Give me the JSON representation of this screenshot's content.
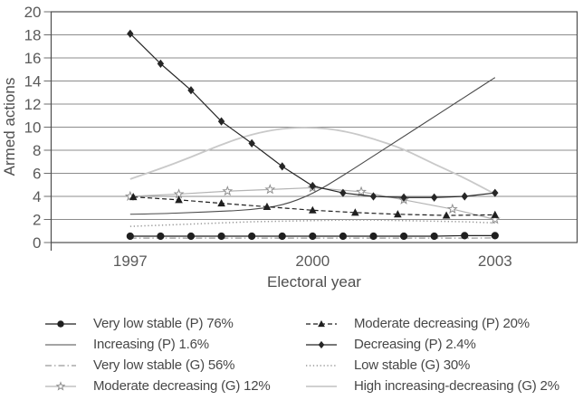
{
  "chart_data": {
    "type": "line",
    "title": "",
    "ylabel": "Armed actions",
    "xlabel": "Electoral year",
    "ylim": [
      0,
      20
    ],
    "xlim": [
      1995.7,
      2004.35
    ],
    "yticks": [
      0,
      2,
      4,
      6,
      8,
      10,
      12,
      14,
      16,
      18,
      20
    ],
    "xticks": [
      1997,
      2000,
      2003
    ],
    "grid": "horizontal",
    "legend_position": "bottom, two columns",
    "colors": {
      "dark_line": "#1f1f1f",
      "mid_gray": "#999999",
      "light_gray": "#c9c9c9",
      "grid": "#8c8c8c",
      "border": "#4d4d4d",
      "text": "#4f4f4f"
    },
    "series": [
      {
        "key": "very-low-stable-p",
        "label": "Very low stable (P) 76%",
        "color": "#1f1f1f",
        "line": "solid",
        "width": 1.2,
        "marker": "circle",
        "smooth": false,
        "x": [
          1997,
          1997.5,
          1998,
          1998.5,
          1999,
          1999.5,
          2000,
          2000.5,
          2001,
          2001.5,
          2002,
          2002.5,
          2003
        ],
        "y": [
          0.55,
          0.55,
          0.55,
          0.55,
          0.55,
          0.55,
          0.55,
          0.55,
          0.55,
          0.55,
          0.55,
          0.6,
          0.6
        ]
      },
      {
        "key": "moderate-decreasing-p",
        "label": "Moderate decreasing (P) 20%",
        "color": "#1f1f1f",
        "line": "dashed",
        "width": 1.2,
        "marker": "triangle",
        "smooth": false,
        "x": [
          1997.05,
          1997.8,
          1998.5,
          1999.25,
          2000,
          2000.7,
          2001.4,
          2002.2,
          2003
        ],
        "y": [
          3.95,
          3.7,
          3.4,
          3.1,
          2.8,
          2.6,
          2.45,
          2.35,
          2.4
        ]
      },
      {
        "key": "increasing-p",
        "label": "Increasing (P) 1.6%",
        "color": "#4a4a4a",
        "line": "solid",
        "width": 1.1,
        "marker": "none",
        "smooth": true,
        "x": [
          1997,
          1997.5,
          1998,
          1998.5,
          1999,
          1999.5,
          2000,
          2000.5,
          2001,
          2001.5,
          2002,
          2002.5,
          2003
        ],
        "y": [
          2.45,
          2.5,
          2.6,
          2.7,
          2.85,
          3.2,
          4.2,
          5.8,
          7.5,
          9.2,
          10.9,
          12.6,
          14.3
        ]
      },
      {
        "key": "decreasing-p",
        "label": "Decreasing (P) 2.4%",
        "color": "#262626",
        "line": "solid",
        "width": 1.2,
        "marker": "diamond",
        "smooth": false,
        "x": [
          1997,
          1997.5,
          1998,
          1998.5,
          1999,
          1999.5,
          2000,
          2000.5,
          2001,
          2001.5,
          2002,
          2002.5,
          2003
        ],
        "y": [
          18.1,
          15.5,
          13.2,
          10.5,
          8.6,
          6.6,
          4.9,
          4.3,
          4.0,
          3.9,
          3.9,
          4.0,
          4.3
        ]
      },
      {
        "key": "very-low-stable-g",
        "label": "Very low stable (G) 56%",
        "color": "#999999",
        "line": "dash-dot",
        "width": 1.2,
        "marker": "none",
        "smooth": false,
        "x": [
          1997,
          1997.5,
          1998,
          1998.5,
          1999,
          1999.5,
          2000,
          2000.5,
          2001,
          2001.5,
          2002,
          2002.5,
          2003
        ],
        "y": [
          0.38,
          0.38,
          0.38,
          0.38,
          0.38,
          0.38,
          0.38,
          0.38,
          0.38,
          0.38,
          0.38,
          0.38,
          0.4
        ]
      },
      {
        "key": "low-stable-g",
        "label": "Low stable (G) 30%",
        "color": "#999999",
        "line": "dotted",
        "width": 1.5,
        "marker": "none",
        "smooth": false,
        "x": [
          1997,
          1997.5,
          1998,
          1998.5,
          1999,
          1999.5,
          2000,
          2000.5,
          2001,
          2001.5,
          2002,
          2002.5,
          2003
        ],
        "y": [
          1.4,
          1.5,
          1.6,
          1.7,
          1.8,
          1.85,
          1.9,
          1.95,
          1.95,
          1.9,
          1.85,
          1.8,
          1.7
        ]
      },
      {
        "key": "moderate-decreasing-g",
        "label": "Moderate decreasing (G) 12%",
        "color": "#b3b3b3",
        "line": "solid",
        "width": 1.2,
        "marker": "star",
        "smooth": false,
        "x": [
          1997,
          1997.8,
          1998.6,
          1999.3,
          2000,
          2000.8,
          2001.5,
          2002.3,
          2003
        ],
        "y": [
          4.0,
          4.2,
          4.45,
          4.6,
          4.75,
          4.4,
          3.7,
          2.9,
          2.0
        ]
      },
      {
        "key": "high-increasing-decreasing-g",
        "label": "High increasing-decreasing (G) 2%",
        "color": "#c9c9c9",
        "line": "solid",
        "width": 1.8,
        "marker": "none",
        "smooth": true,
        "x": [
          1997,
          1997.5,
          1998,
          1998.5,
          1999,
          1999.5,
          2000,
          2000.5,
          2001,
          2001.5,
          2002,
          2002.5,
          2003
        ],
        "y": [
          5.5,
          6.4,
          7.4,
          8.5,
          9.4,
          9.9,
          10.0,
          9.7,
          9.0,
          8.1,
          6.8,
          5.6,
          4.2
        ]
      }
    ]
  }
}
